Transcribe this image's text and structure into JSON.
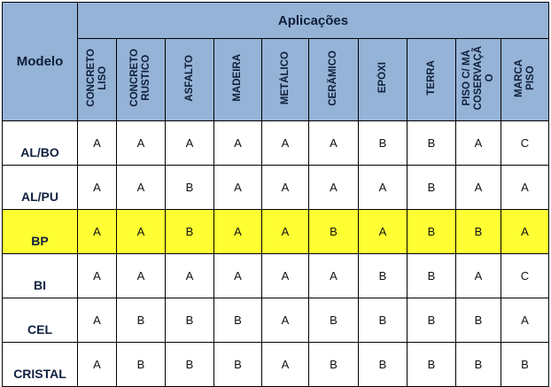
{
  "header": {
    "modelo": "Modelo",
    "aplicacoes": "Aplicações"
  },
  "columns": [
    "CONCRETO\nLISO",
    "CONCRETO\nRUSTICO",
    "ASFALTO",
    "MADEIRA",
    "METÁLICO",
    "CERÂMICO",
    "EPÓXI",
    "TERRA",
    "PISO C/ MÁ\nCOSERVAÇÃ\nO",
    "MARCA\nPISO"
  ],
  "rows": [
    {
      "model": "AL/BO",
      "values": [
        "A",
        "A",
        "A",
        "A",
        "A",
        "A",
        "B",
        "B",
        "A",
        "C"
      ]
    },
    {
      "model": "AL/PU",
      "values": [
        "A",
        "A",
        "B",
        "A",
        "A",
        "A",
        "A",
        "B",
        "A",
        "A"
      ]
    },
    {
      "model": "BP",
      "values": [
        "A",
        "A",
        "B",
        "A",
        "A",
        "B",
        "A",
        "B",
        "B",
        "A"
      ]
    },
    {
      "model": "BI",
      "values": [
        "A",
        "A",
        "A",
        "A",
        "A",
        "A",
        "B",
        "B",
        "A",
        "C"
      ]
    },
    {
      "model": "CEL",
      "values": [
        "A",
        "B",
        "B",
        "B",
        "A",
        "B",
        "B",
        "B",
        "B",
        "A"
      ]
    },
    {
      "model": "CRISTAL",
      "values": [
        "A",
        "B",
        "B",
        "B",
        "A",
        "B",
        "B",
        "B",
        "B",
        "B"
      ]
    }
  ],
  "colors": {
    "header_bg": "#95b3d7",
    "highlight_row": "#ffff33"
  }
}
